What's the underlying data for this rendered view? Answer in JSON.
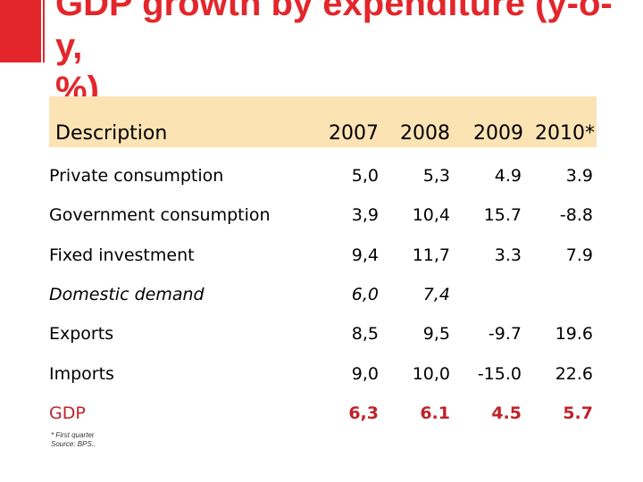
{
  "title": "GDP growth by expenditure (y-o-y,\n%)",
  "colors": {
    "accent": "#e3262b",
    "header_band": "#fce3b4",
    "gdp_row": "#c0222a"
  },
  "table": {
    "header": {
      "description": "Description",
      "years": [
        "2007",
        "2008",
        "2009",
        "2010*"
      ]
    },
    "rows": [
      {
        "label": "Private consumption",
        "values": [
          "5,0",
          "5,3",
          "4.9",
          "3.9"
        ]
      },
      {
        "label": "Government consumption",
        "values": [
          "3,9",
          "10,4",
          "15.7",
          "-8.8"
        ]
      },
      {
        "label": "Fixed investment",
        "values": [
          "9,4",
          "11,7",
          "3.3",
          "7.9"
        ]
      },
      {
        "label": "Domestic demand",
        "values": [
          "6,0",
          "7,4",
          "",
          ""
        ]
      },
      {
        "label": "Exports",
        "values": [
          "8,5",
          "9,5",
          "-9.7",
          "19.6"
        ]
      },
      {
        "label": "Imports",
        "values": [
          "9,0",
          "10,0",
          "-15.0",
          "22.6"
        ]
      },
      {
        "label": "GDP",
        "values": [
          "6,3",
          "6.1",
          "4.5",
          "5.7"
        ]
      }
    ]
  },
  "footnote": {
    "line1": "* First quarter",
    "line2": "Source: BPS.."
  }
}
